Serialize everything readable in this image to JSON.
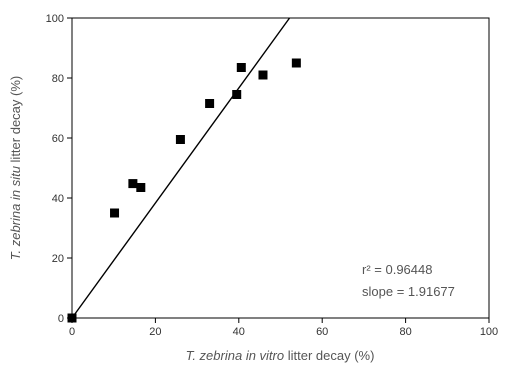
{
  "chart_data": {
    "type": "scatter",
    "title": "",
    "xlabel": {
      "parts": [
        {
          "text": "T. zebrina ",
          "italic": true
        },
        {
          "text": "in vitro",
          "italic": true
        },
        {
          "text": " litter decay (%)",
          "italic": false
        }
      ]
    },
    "ylabel": {
      "parts": [
        {
          "text": "T. zebrina ",
          "italic": true
        },
        {
          "text": "in situ",
          "italic": true
        },
        {
          "text": " litter decay (%)",
          "italic": false
        }
      ]
    },
    "xlim": [
      0,
      100
    ],
    "ylim": [
      0,
      100
    ],
    "xticks": [
      0,
      20,
      40,
      60,
      80,
      100
    ],
    "yticks": [
      0,
      20,
      40,
      60,
      80,
      100
    ],
    "grid": false,
    "legend": "none",
    "series": [
      {
        "points": [
          {
            "x": 0,
            "y": 0
          },
          {
            "x": 10.2,
            "y": 35
          },
          {
            "x": 14.6,
            "y": 44.8
          },
          {
            "x": 16.5,
            "y": 43.5
          },
          {
            "x": 26,
            "y": 59.5
          },
          {
            "x": 33,
            "y": 71.5
          },
          {
            "x": 39.5,
            "y": 74.5
          },
          {
            "x": 40.6,
            "y": 83.5
          },
          {
            "x": 45.8,
            "y": 81
          },
          {
            "x": 53.8,
            "y": 85
          }
        ],
        "color": "#000000",
        "marker": "square"
      }
    ],
    "fit_line": {
      "intercept": 0,
      "slope": 1.91677,
      "color": "#000000"
    },
    "annotations": [
      {
        "text": "r² = 0.96448"
      },
      {
        "text": "slope = 1.91677"
      }
    ]
  }
}
